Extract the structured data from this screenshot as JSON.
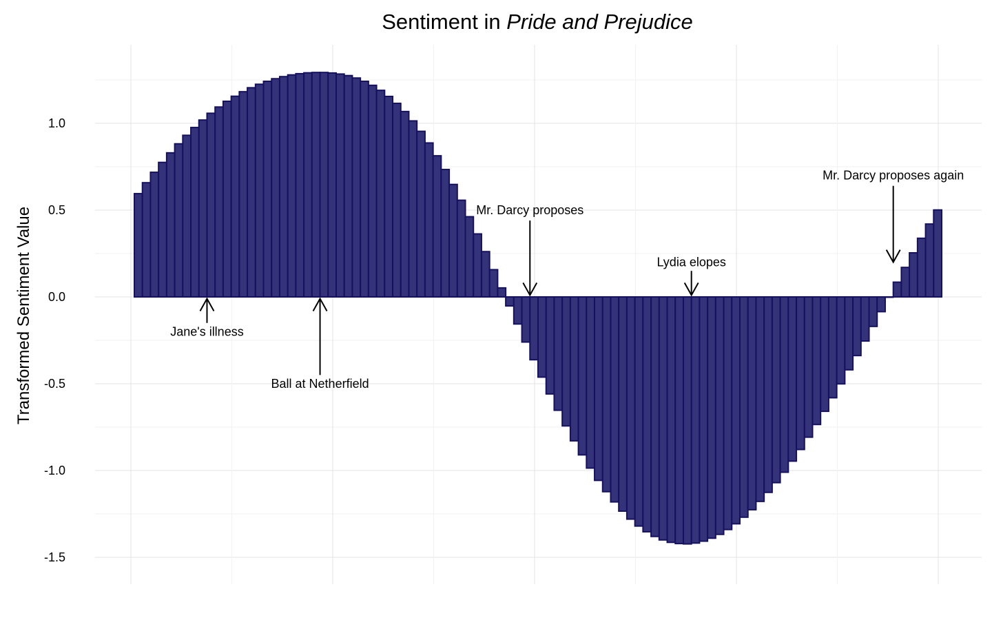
{
  "chart_data": {
    "type": "bar",
    "title_parts": [
      {
        "text": "Sentiment in ",
        "italic": false
      },
      {
        "text": "Pride and Prejudice",
        "italic": true
      }
    ],
    "xlabel": "",
    "ylabel": "Transformed Sentiment Value",
    "ylim": [
      -1.6,
      1.45
    ],
    "yticks": [
      1.0,
      0.5,
      0.0,
      -0.5,
      -1.0,
      -1.5
    ],
    "ytick_labels": [
      "1.0",
      "0.5",
      "0.0",
      "-0.5",
      "-1.0",
      "-1.5"
    ],
    "x_count": 100,
    "grid": true,
    "bar_fill": "#34337a",
    "bar_stroke": "#15115f",
    "values": [
      0.595,
      0.658,
      0.718,
      0.775,
      0.83,
      0.882,
      0.931,
      0.976,
      1.019,
      1.058,
      1.094,
      1.127,
      1.156,
      1.182,
      1.205,
      1.225,
      1.242,
      1.257,
      1.269,
      1.279,
      1.286,
      1.291,
      1.293,
      1.293,
      1.29,
      1.284,
      1.275,
      1.261,
      1.242,
      1.219,
      1.19,
      1.155,
      1.115,
      1.068,
      1.014,
      0.954,
      0.887,
      0.813,
      0.734,
      0.648,
      0.557,
      0.462,
      0.363,
      0.261,
      0.157,
      0.052,
      -0.052,
      -0.156,
      -0.26,
      -0.362,
      -0.462,
      -0.559,
      -0.653,
      -0.743,
      -0.829,
      -0.91,
      -0.986,
      -1.057,
      -1.122,
      -1.181,
      -1.234,
      -1.28,
      -1.32,
      -1.353,
      -1.38,
      -1.4,
      -1.414,
      -1.421,
      -1.423,
      -1.418,
      -1.407,
      -1.39,
      -1.368,
      -1.34,
      -1.307,
      -1.269,
      -1.226,
      -1.178,
      -1.126,
      -1.07,
      -1.01,
      -0.946,
      -0.879,
      -0.808,
      -0.735,
      -0.659,
      -0.581,
      -0.501,
      -0.42,
      -0.338,
      -0.254,
      -0.17,
      -0.085,
      0.0,
      0.085,
      0.17,
      0.254,
      0.338,
      0.42,
      0.501
    ],
    "annotations": [
      {
        "text": "Jane's illness",
        "x_index": 8.5,
        "text_y": -0.2,
        "arrow_from": -0.15,
        "arrow_to": -0.01
      },
      {
        "text": "Ball at Netherfield",
        "x_index": 22.5,
        "text_y": -0.5,
        "arrow_from": -0.45,
        "arrow_to": -0.01
      },
      {
        "text": "Mr. Darcy proposes",
        "x_index": 48.5,
        "text_y": 0.5,
        "arrow_from": 0.44,
        "arrow_to": 0.01
      },
      {
        "text": "Lydia elopes",
        "x_index": 68.5,
        "text_y": 0.2,
        "arrow_from": 0.15,
        "arrow_to": 0.01
      },
      {
        "text": "Mr. Darcy proposes again",
        "x_index": 93.5,
        "text_y": 0.7,
        "arrow_from": 0.64,
        "arrow_to": 0.2
      }
    ]
  }
}
